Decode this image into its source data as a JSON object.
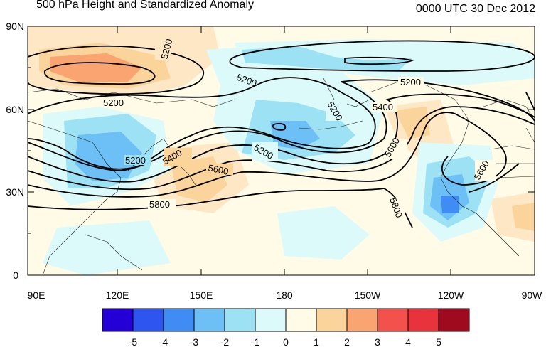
{
  "title": "500 hPa Height and Standardized Anomaly",
  "datetime": "0000 UTC 30 Dec 2012",
  "latitude_ticks": [
    "90N",
    "60N",
    "30N",
    "0"
  ],
  "longitude_ticks": [
    "90E",
    "120E",
    "150E",
    "180",
    "150W",
    "120W",
    "90W"
  ],
  "contour_labels": [
    "5200",
    "5200",
    "5200",
    "5200",
    "5200",
    "5200",
    "5200",
    "5400",
    "5400",
    "5600",
    "5600",
    "5600",
    "5800",
    "5800"
  ],
  "colorbar": {
    "labels": [
      "-5",
      "-4",
      "-3",
      "-2",
      "-1",
      "0",
      "1",
      "2",
      "3",
      "4",
      "5"
    ],
    "colors": [
      "#2400d6",
      "#2e55f0",
      "#3f8cf5",
      "#6cc0f5",
      "#9de1f5",
      "#dcfafa",
      "#fffbe6",
      "#fbd49b",
      "#f9a471",
      "#f2524b",
      "#e8333d",
      "#a00a1e"
    ]
  }
}
